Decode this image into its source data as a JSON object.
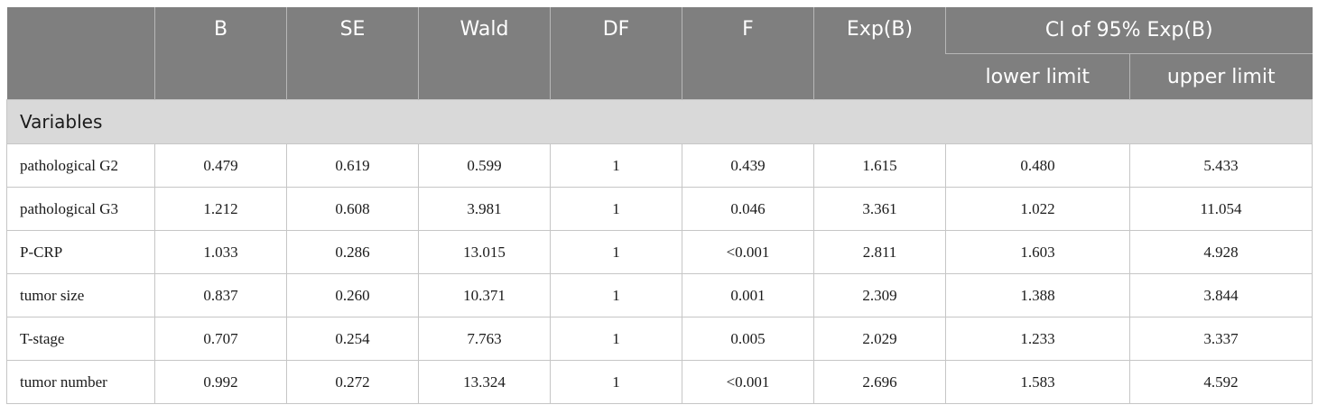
{
  "header": {
    "columns": [
      "",
      "B",
      "SE",
      "Wald",
      "DF",
      "F",
      "Exp(B)"
    ],
    "ci_group": "Cl of 95% Exp(B)",
    "ci_sub": [
      "lower limit",
      "upper limit"
    ]
  },
  "section_label": "Variables",
  "rows": [
    {
      "name": "pathological G2",
      "values": [
        "0.479",
        "0.619",
        "0.599",
        "1",
        "0.439",
        "1.615",
        "0.480",
        "5.433"
      ]
    },
    {
      "name": "pathological G3",
      "values": [
        "1.212",
        "0.608",
        "3.981",
        "1",
        "0.046",
        "3.361",
        "1.022",
        "11.054"
      ]
    },
    {
      "name": "P-CRP",
      "values": [
        "1.033",
        "0.286",
        "13.015",
        "1",
        "<0.001",
        "2.811",
        "1.603",
        "4.928"
      ]
    },
    {
      "name": "tumor size",
      "values": [
        "0.837",
        "0.260",
        "10.371",
        "1",
        "0.001",
        "2.309",
        "1.388",
        "3.844"
      ]
    },
    {
      "name": "T-stage",
      "values": [
        "0.707",
        "0.254",
        "7.763",
        "1",
        "0.005",
        "2.029",
        "1.233",
        "3.337"
      ]
    },
    {
      "name": "tumor number",
      "values": [
        "0.992",
        "0.272",
        "13.324",
        "1",
        "<0.001",
        "2.696",
        "1.583",
        "4.592"
      ]
    }
  ],
  "colors": {
    "header_bg": "#7f7f7f",
    "section_bg": "#d9d9d9",
    "header_text": "#ffffff"
  }
}
